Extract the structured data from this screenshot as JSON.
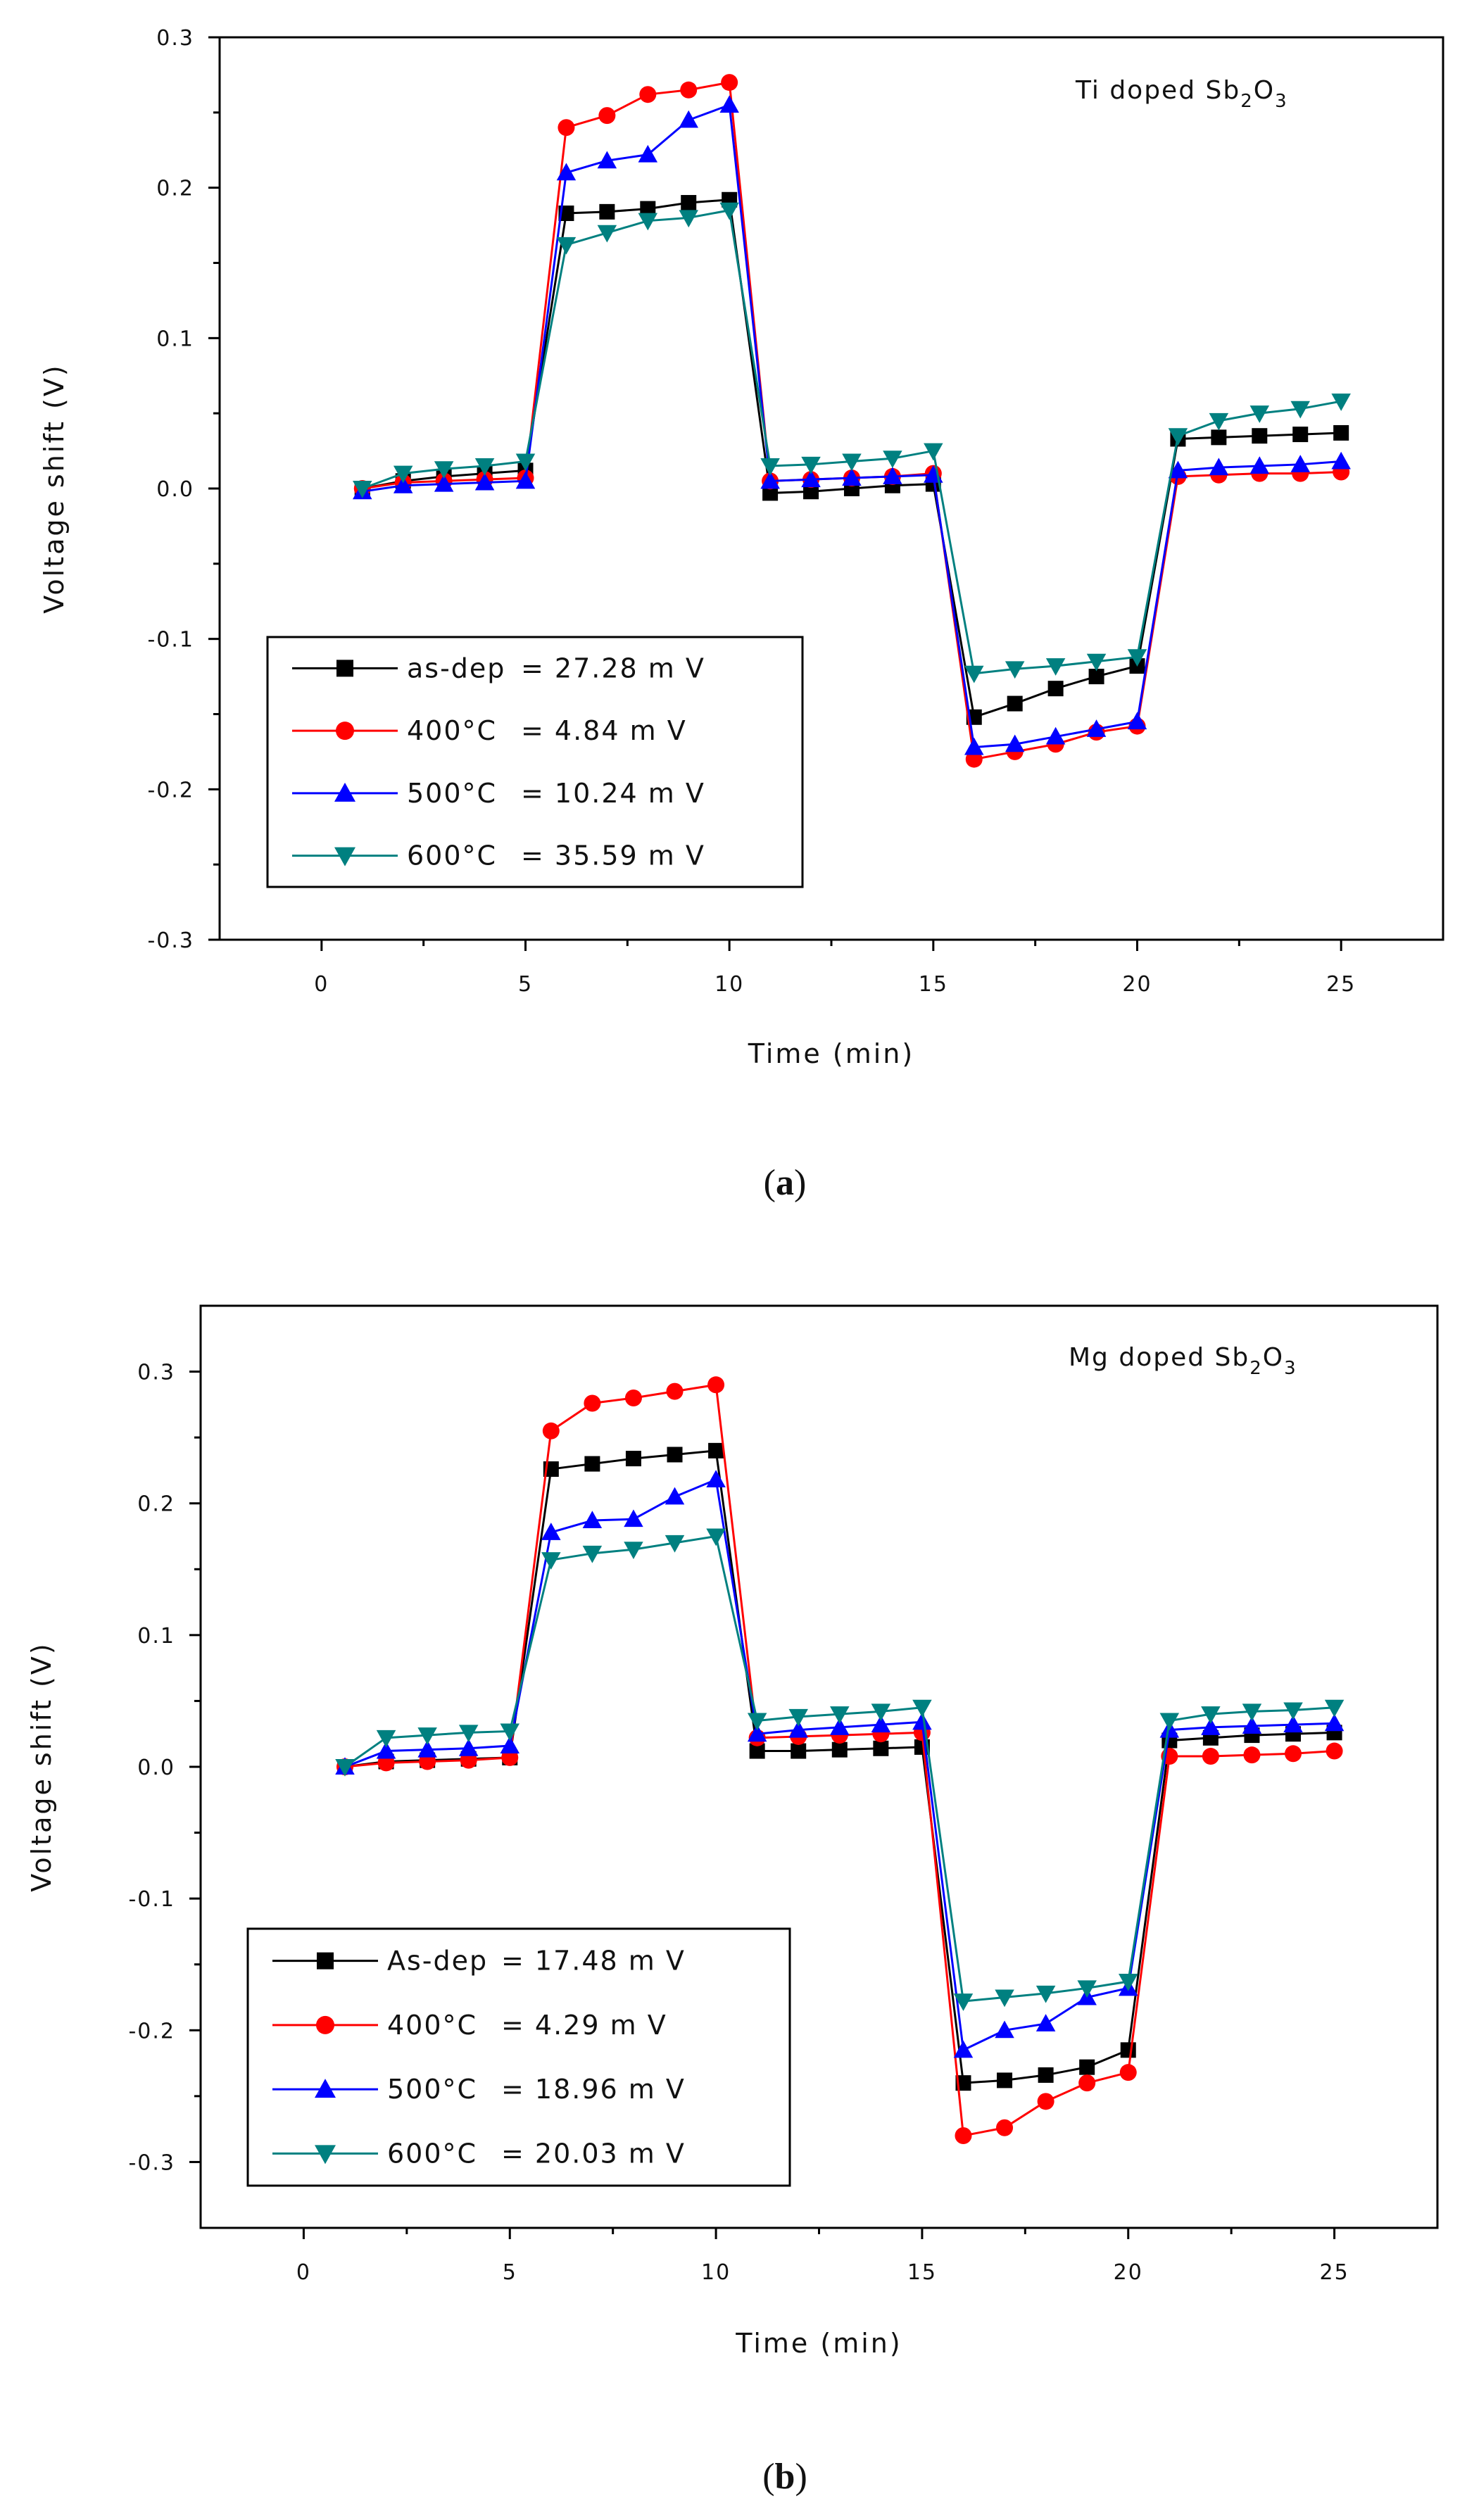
{
  "chart_data": [
    {
      "type": "line",
      "panel_label": "a",
      "title_parts": {
        "prefix": "Ti doped Sb",
        "sub1": "2",
        "mid": "O",
        "sub2": "3"
      },
      "xlabel": "Time (min)",
      "ylabel": "Voltage shift (V)",
      "xlim": [
        -2.5,
        27.5
      ],
      "ylim": [
        -0.3,
        0.3
      ],
      "xticks": [
        0,
        5,
        10,
        15,
        20,
        25
      ],
      "xtick_labels": [
        "0",
        "5",
        "10",
        "15",
        "20",
        "25"
      ],
      "yticks": [
        -0.3,
        -0.2,
        -0.1,
        0.0,
        0.1,
        0.2,
        0.3
      ],
      "ytick_labels": [
        "-0.3",
        "-0.2",
        "-0.1",
        "0.0",
        "0.1",
        "0.2",
        "0.3"
      ],
      "legend_position": "lower-left",
      "x": [
        1,
        2,
        3,
        4,
        5,
        6,
        7,
        8,
        9,
        10,
        11,
        12,
        13,
        14,
        15,
        16,
        17,
        18,
        19,
        20,
        21,
        22,
        23,
        24,
        25
      ],
      "series": [
        {
          "name": "as-dep",
          "legend_label": "as-dep",
          "legend_value": "= 27.28 m V",
          "color": "#000000",
          "marker": "square",
          "values": [
            0.0,
            0.005,
            0.008,
            0.01,
            0.012,
            0.183,
            0.184,
            0.186,
            0.19,
            0.192,
            -0.003,
            -0.002,
            0.0,
            0.002,
            0.003,
            -0.152,
            -0.143,
            -0.133,
            -0.125,
            -0.118,
            0.033,
            0.034,
            0.035,
            0.036,
            0.037
          ]
        },
        {
          "name": "400°C",
          "legend_label": "400°C",
          "legend_value": "=   4.84 m V",
          "color": "#ff0000",
          "marker": "circle",
          "values": [
            0.0,
            0.004,
            0.005,
            0.006,
            0.007,
            0.24,
            0.248,
            0.262,
            0.265,
            0.27,
            0.005,
            0.006,
            0.007,
            0.008,
            0.01,
            -0.18,
            -0.175,
            -0.17,
            -0.162,
            -0.158,
            0.008,
            0.009,
            0.01,
            0.01,
            0.011
          ]
        },
        {
          "name": "500°C",
          "legend_label": "500°C",
          "legend_value": "= 10.24 m V",
          "color": "#0000ff",
          "marker": "triangle-up",
          "values": [
            -0.002,
            0.002,
            0.003,
            0.004,
            0.005,
            0.21,
            0.218,
            0.222,
            0.245,
            0.255,
            0.005,
            0.006,
            0.007,
            0.008,
            0.009,
            -0.172,
            -0.17,
            -0.165,
            -0.16,
            -0.155,
            0.012,
            0.014,
            0.015,
            0.016,
            0.018
          ]
        },
        {
          "name": "600°C",
          "legend_label": "600°C",
          "legend_value": "= 35.59 m V",
          "color": "#008080",
          "marker": "triangle-down",
          "values": [
            0.0,
            0.01,
            0.013,
            0.015,
            0.018,
            0.162,
            0.17,
            0.178,
            0.18,
            0.185,
            0.015,
            0.016,
            0.018,
            0.02,
            0.025,
            -0.123,
            -0.12,
            -0.118,
            -0.115,
            -0.112,
            0.035,
            0.045,
            0.05,
            0.053,
            0.058
          ]
        }
      ]
    },
    {
      "type": "line",
      "panel_label": "b",
      "title_parts": {
        "prefix": "Mg doped Sb",
        "sub1": "2",
        "mid": "O",
        "sub2": "3"
      },
      "xlabel": "Time (min)",
      "ylabel": "Voltage shift (V)",
      "xlim": [
        -2.5,
        27.5
      ],
      "ylim": [
        -0.35,
        0.35
      ],
      "xticks": [
        0,
        5,
        10,
        15,
        20,
        25
      ],
      "xtick_labels": [
        "0",
        "5",
        "10",
        "15",
        "20",
        "25"
      ],
      "yticks": [
        -0.3,
        -0.2,
        -0.1,
        0.0,
        0.1,
        0.2,
        0.3
      ],
      "ytick_labels": [
        "-0.3",
        "-0.2",
        "-0.1",
        "0.0",
        "0.1",
        "0.2",
        "0.3"
      ],
      "legend_position": "lower-left",
      "x": [
        1,
        2,
        3,
        4,
        5,
        6,
        7,
        8,
        9,
        10,
        11,
        12,
        13,
        14,
        15,
        16,
        17,
        18,
        19,
        20,
        21,
        22,
        23,
        24,
        25
      ],
      "series": [
        {
          "name": "As-dep",
          "legend_label": "As-dep",
          "legend_value": "=   17.48 m V",
          "color": "#000000",
          "marker": "square",
          "values": [
            0.0,
            0.004,
            0.005,
            0.006,
            0.007,
            0.226,
            0.23,
            0.234,
            0.237,
            0.24,
            0.012,
            0.012,
            0.013,
            0.014,
            0.015,
            -0.24,
            -0.238,
            -0.234,
            -0.228,
            -0.215,
            0.02,
            0.022,
            0.024,
            0.025,
            0.026
          ]
        },
        {
          "name": "400°C",
          "legend_label": "400°C",
          "legend_value": "=   4.29 m V",
          "color": "#ff0000",
          "marker": "circle",
          "values": [
            0.0,
            0.003,
            0.004,
            0.005,
            0.007,
            0.255,
            0.276,
            0.28,
            0.285,
            0.29,
            0.022,
            0.023,
            0.024,
            0.025,
            0.026,
            -0.28,
            -0.274,
            -0.254,
            -0.24,
            -0.232,
            0.008,
            0.008,
            0.009,
            0.01,
            0.012
          ]
        },
        {
          "name": "500°C",
          "legend_label": "500°C",
          "legend_value": "=   18.96 m V",
          "color": "#0000ff",
          "marker": "triangle-up",
          "values": [
            0.0,
            0.012,
            0.013,
            0.014,
            0.016,
            0.178,
            0.187,
            0.188,
            0.205,
            0.218,
            0.025,
            0.028,
            0.03,
            0.032,
            0.034,
            -0.215,
            -0.2,
            -0.195,
            -0.175,
            -0.168,
            0.028,
            0.03,
            0.031,
            0.032,
            0.033
          ]
        },
        {
          "name": "600°C",
          "legend_label": "600°C",
          "legend_value": "=   20.03 m V",
          "color": "#008080",
          "marker": "triangle-down",
          "values": [
            0.0,
            0.022,
            0.024,
            0.026,
            0.027,
            0.157,
            0.162,
            0.165,
            0.17,
            0.175,
            0.035,
            0.038,
            0.04,
            0.042,
            0.045,
            -0.178,
            -0.175,
            -0.172,
            -0.168,
            -0.163,
            0.035,
            0.04,
            0.042,
            0.043,
            0.045
          ]
        }
      ]
    }
  ]
}
